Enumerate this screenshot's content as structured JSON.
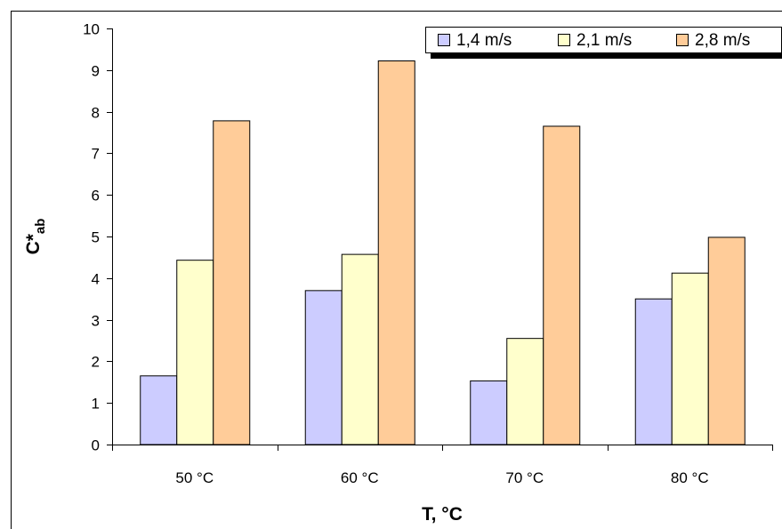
{
  "chart_data": {
    "type": "bar",
    "title": "",
    "xlabel": "T, °C",
    "ylabel_main": "C*",
    "ylabel_sub": "ab",
    "ylim": [
      0,
      10
    ],
    "yticks": [
      "0",
      "1",
      "2",
      "3",
      "4",
      "5",
      "6",
      "7",
      "8",
      "9",
      "10"
    ],
    "categories": [
      "50 °C",
      "60 °C",
      "70 °C",
      "80 °C"
    ],
    "series": [
      {
        "name": "1,4 m/s",
        "color": "#CCCCFF",
        "values": [
          1.65,
          3.7,
          1.53,
          3.5
        ]
      },
      {
        "name": "2,1 m/s",
        "color": "#FFFFCC",
        "values": [
          4.43,
          4.57,
          2.55,
          4.12
        ]
      },
      {
        "name": "2,8  m/s",
        "color": "#FFCC99",
        "values": [
          7.78,
          9.22,
          7.65,
          4.98
        ]
      }
    ],
    "grid": false,
    "legend_position": "top-right"
  }
}
